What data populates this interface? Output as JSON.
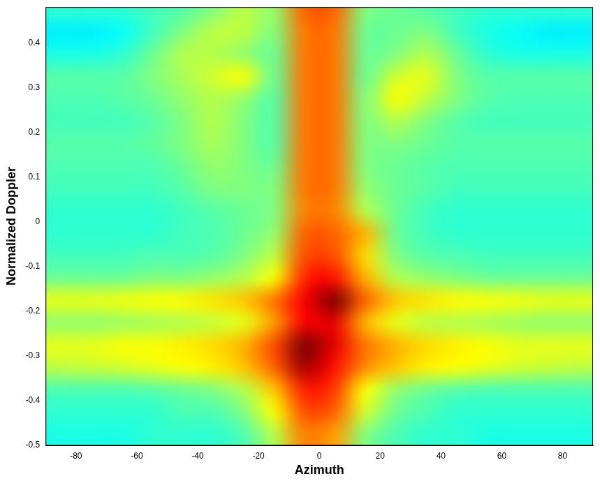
{
  "chart_data": {
    "type": "heatmap",
    "x_label": "Azimuth",
    "y_label": "Normalized Doppler",
    "xlim": [
      -90,
      90
    ],
    "ylim": [
      -0.5,
      0.48
    ],
    "xticks": [
      -80,
      -60,
      -40,
      -20,
      0,
      20,
      40,
      60,
      80
    ],
    "yticks": [
      -0.5,
      -0.4,
      -0.3,
      -0.2,
      -0.1,
      0,
      0.1,
      0.2,
      0.3,
      0.4
    ],
    "grid": false,
    "color": "jet",
    "color_range": [
      0,
      1
    ],
    "x": [
      -85,
      -75,
      -65,
      -55,
      -45,
      -35,
      -25,
      -15,
      -5,
      5,
      15,
      25,
      35,
      45,
      55,
      65,
      75,
      85
    ],
    "y": [
      -0.475,
      -0.425,
      -0.375,
      -0.325,
      -0.275,
      -0.225,
      -0.175,
      -0.125,
      -0.075,
      -0.025,
      0.025,
      0.075,
      0.125,
      0.175,
      0.225,
      0.275,
      0.325,
      0.375,
      0.425,
      0.475
    ],
    "cells": [
      [
        0.4,
        0.4,
        0.4,
        0.42,
        0.42,
        0.42,
        0.45,
        0.55,
        0.75,
        0.72,
        0.5,
        0.45,
        0.42,
        0.42,
        0.4,
        0.4,
        0.4,
        0.4
      ],
      [
        0.42,
        0.42,
        0.42,
        0.42,
        0.45,
        0.45,
        0.5,
        0.62,
        0.8,
        0.78,
        0.58,
        0.48,
        0.45,
        0.42,
        0.42,
        0.42,
        0.42,
        0.42
      ],
      [
        0.45,
        0.45,
        0.45,
        0.46,
        0.48,
        0.5,
        0.55,
        0.68,
        0.85,
        0.82,
        0.62,
        0.52,
        0.48,
        0.46,
        0.45,
        0.45,
        0.45,
        0.45
      ],
      [
        0.56,
        0.57,
        0.58,
        0.6,
        0.62,
        0.64,
        0.68,
        0.78,
        0.96,
        0.86,
        0.74,
        0.68,
        0.64,
        0.62,
        0.6,
        0.58,
        0.57,
        0.56
      ],
      [
        0.6,
        0.6,
        0.62,
        0.62,
        0.64,
        0.66,
        0.7,
        0.8,
        1.0,
        0.9,
        0.76,
        0.7,
        0.66,
        0.64,
        0.62,
        0.6,
        0.6,
        0.6
      ],
      [
        0.52,
        0.52,
        0.53,
        0.54,
        0.55,
        0.57,
        0.6,
        0.72,
        0.88,
        0.9,
        0.7,
        0.6,
        0.56,
        0.55,
        0.54,
        0.53,
        0.52,
        0.52
      ],
      [
        0.6,
        0.6,
        0.61,
        0.62,
        0.63,
        0.65,
        0.68,
        0.76,
        0.88,
        1.0,
        0.78,
        0.68,
        0.65,
        0.63,
        0.62,
        0.61,
        0.6,
        0.6
      ],
      [
        0.48,
        0.48,
        0.48,
        0.5,
        0.5,
        0.52,
        0.55,
        0.62,
        0.84,
        0.86,
        0.7,
        0.55,
        0.52,
        0.5,
        0.48,
        0.48,
        0.48,
        0.48
      ],
      [
        0.44,
        0.44,
        0.44,
        0.45,
        0.45,
        0.46,
        0.5,
        0.56,
        0.8,
        0.8,
        0.66,
        0.5,
        0.46,
        0.45,
        0.44,
        0.44,
        0.44,
        0.44
      ],
      [
        0.42,
        0.42,
        0.42,
        0.42,
        0.44,
        0.45,
        0.48,
        0.52,
        0.78,
        0.78,
        0.7,
        0.48,
        0.44,
        0.42,
        0.42,
        0.42,
        0.42,
        0.42
      ],
      [
        0.42,
        0.42,
        0.42,
        0.42,
        0.44,
        0.46,
        0.48,
        0.5,
        0.75,
        0.75,
        0.55,
        0.48,
        0.44,
        0.42,
        0.42,
        0.42,
        0.42,
        0.42
      ],
      [
        0.44,
        0.44,
        0.44,
        0.44,
        0.46,
        0.5,
        0.5,
        0.5,
        0.76,
        0.76,
        0.52,
        0.48,
        0.46,
        0.44,
        0.44,
        0.44,
        0.44,
        0.44
      ],
      [
        0.45,
        0.45,
        0.45,
        0.45,
        0.48,
        0.52,
        0.5,
        0.48,
        0.76,
        0.76,
        0.5,
        0.48,
        0.46,
        0.45,
        0.45,
        0.45,
        0.45,
        0.45
      ],
      [
        0.46,
        0.46,
        0.46,
        0.47,
        0.5,
        0.54,
        0.5,
        0.46,
        0.76,
        0.76,
        0.5,
        0.5,
        0.48,
        0.46,
        0.46,
        0.46,
        0.46,
        0.46
      ],
      [
        0.44,
        0.44,
        0.44,
        0.46,
        0.5,
        0.55,
        0.5,
        0.46,
        0.76,
        0.76,
        0.5,
        0.55,
        0.5,
        0.46,
        0.44,
        0.44,
        0.44,
        0.44
      ],
      [
        0.45,
        0.45,
        0.46,
        0.48,
        0.52,
        0.55,
        0.52,
        0.46,
        0.76,
        0.76,
        0.5,
        0.62,
        0.56,
        0.5,
        0.46,
        0.45,
        0.45,
        0.45
      ],
      [
        0.46,
        0.46,
        0.46,
        0.5,
        0.54,
        0.58,
        0.62,
        0.48,
        0.76,
        0.76,
        0.48,
        0.58,
        0.6,
        0.5,
        0.46,
        0.46,
        0.46,
        0.46
      ],
      [
        0.4,
        0.4,
        0.42,
        0.48,
        0.55,
        0.55,
        0.52,
        0.48,
        0.76,
        0.76,
        0.48,
        0.5,
        0.55,
        0.48,
        0.42,
        0.4,
        0.4,
        0.4
      ],
      [
        0.36,
        0.36,
        0.38,
        0.44,
        0.5,
        0.56,
        0.56,
        0.5,
        0.76,
        0.76,
        0.48,
        0.48,
        0.5,
        0.44,
        0.4,
        0.38,
        0.36,
        0.36
      ],
      [
        0.42,
        0.42,
        0.42,
        0.44,
        0.46,
        0.5,
        0.56,
        0.52,
        0.78,
        0.78,
        0.5,
        0.48,
        0.46,
        0.44,
        0.42,
        0.42,
        0.42,
        0.42
      ]
    ]
  }
}
